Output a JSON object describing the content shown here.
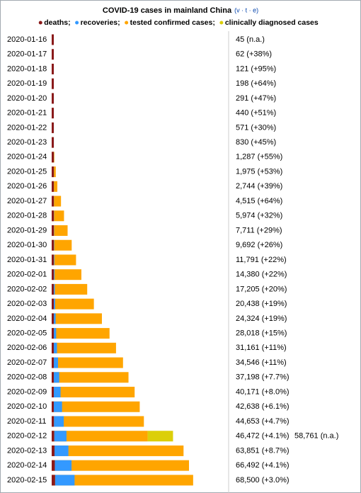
{
  "chart_data": {
    "type": "stacked-bar-horizontal",
    "title": "COVID-19 cases in mainland China",
    "title_links": "(v · t · e)",
    "categories": [
      "2020-01-16",
      "2020-01-17",
      "2020-01-18",
      "2020-01-19",
      "2020-01-20",
      "2020-01-21",
      "2020-01-22",
      "2020-01-23",
      "2020-01-24",
      "2020-01-25",
      "2020-01-26",
      "2020-01-27",
      "2020-01-28",
      "2020-01-29",
      "2020-01-30",
      "2020-01-31",
      "2020-02-01",
      "2020-02-02",
      "2020-02-03",
      "2020-02-04",
      "2020-02-05",
      "2020-02-06",
      "2020-02-07",
      "2020-02-08",
      "2020-02-09",
      "2020-02-10",
      "2020-02-11",
      "2020-02-12",
      "2020-02-13",
      "2020-02-14",
      "2020-02-15"
    ],
    "series": [
      {
        "name": "deaths;",
        "color": "#8b1a1a",
        "values": [
          2,
          2,
          3,
          3,
          6,
          9,
          17,
          25,
          41,
          56,
          80,
          106,
          132,
          170,
          213,
          259,
          304,
          361,
          425,
          490,
          562,
          636,
          722,
          811,
          908,
          1016,
          1113,
          1259,
          1380,
          1523,
          1665
        ]
      },
      {
        "name": "recoveries;",
        "color": "#3399ff",
        "values": [
          12,
          12,
          17,
          17,
          25,
          25,
          28,
          34,
          38,
          49,
          51,
          60,
          103,
          124,
          171,
          243,
          328,
          475,
          632,
          892,
          1153,
          1540,
          2050,
          2649,
          3281,
          3996,
          4740,
          5911,
          6723,
          8096,
          9419
        ]
      },
      {
        "name": "tested confirmed cases;",
        "color": "#ffa500",
        "values": [
          45,
          62,
          121,
          198,
          291,
          440,
          571,
          830,
          1287,
          1975,
          2744,
          4515,
          5974,
          7711,
          9692,
          11791,
          14380,
          17205,
          20438,
          24324,
          28018,
          31161,
          34546,
          37198,
          40171,
          42638,
          44653,
          46472,
          63851,
          66492,
          68500
        ],
        "value_labels": [
          "45 (n.a.)",
          "62 (+38%)",
          "121 (+95%)",
          "198 (+64%)",
          "291 (+47%)",
          "440 (+51%)",
          "571 (+30%)",
          "830 (+45%)",
          "1,287 (+55%)",
          "1,975 (+53%)",
          "2,744 (+39%)",
          "4,515 (+64%)",
          "5,974 (+32%)",
          "7,711 (+29%)",
          "9,692 (+26%)",
          "11,791 (+22%)",
          "14,380 (+22%)",
          "17,205 (+20%)",
          "20,438 (+19%)",
          "24,324 (+19%)",
          "28,018 (+15%)",
          "31,161 (+11%)",
          "34,546 (+11%)",
          "37,198 (+7.7%)",
          "40,171 (+8.0%)",
          "42,638 (+6.1%)",
          "44,653 (+4.7%)",
          "46,472 (+4.1%)",
          "63,851 (+8.7%)",
          "66,492 (+4.1%)",
          "68,500 (+3.0%)"
        ]
      },
      {
        "name": "clinically diagnosed cases",
        "color": "#dccf0a",
        "values": [
          null,
          null,
          null,
          null,
          null,
          null,
          null,
          null,
          null,
          null,
          null,
          null,
          null,
          null,
          null,
          null,
          null,
          null,
          null,
          null,
          null,
          null,
          null,
          null,
          null,
          null,
          null,
          12289,
          null,
          null,
          null
        ]
      }
    ],
    "annotations": [
      {
        "category": "2020-02-12",
        "text": "58,761 (n.a.)"
      }
    ],
    "xlim": [
      0,
      85000
    ]
  }
}
